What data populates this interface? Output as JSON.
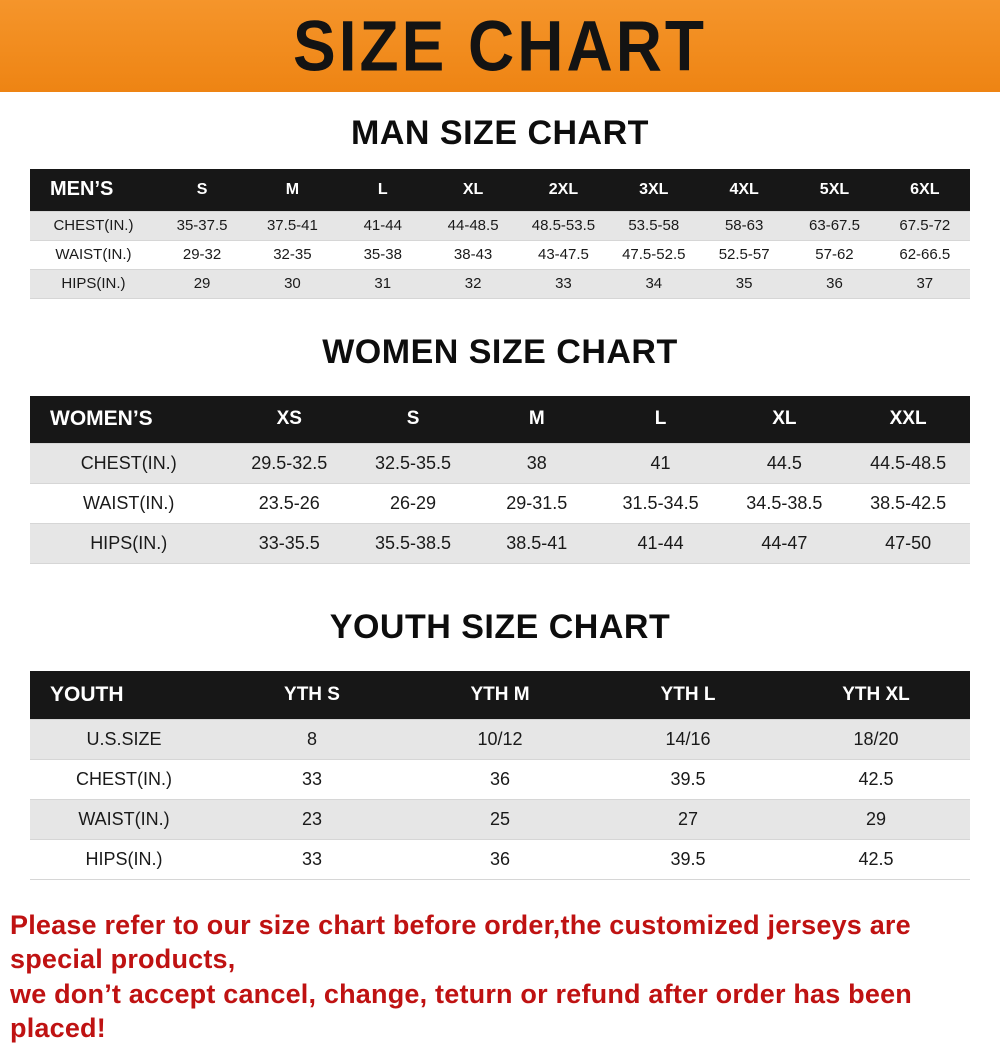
{
  "banner": {
    "title": "SIZE CHART",
    "bg_color": "#f08a1d"
  },
  "colors": {
    "table_header_bg": "#171717",
    "row_shaded": "#e6e6e6",
    "footer_text": "#bf1212"
  },
  "sections": [
    {
      "heading": "MAN SIZE CHART",
      "table": {
        "title": "MEN’S",
        "columns": [
          "S",
          "M",
          "L",
          "XL",
          "2XL",
          "3XL",
          "4XL",
          "5XL",
          "6XL"
        ],
        "rows": [
          {
            "label": "CHEST(IN.)",
            "values": [
              "35-37.5",
              "37.5-41",
              "41-44",
              "44-48.5",
              "48.5-53.5",
              "53.5-58",
              "58-63",
              "63-67.5",
              "67.5-72"
            ]
          },
          {
            "label": "WAIST(IN.)",
            "values": [
              "29-32",
              "32-35",
              "35-38",
              "38-43",
              "43-47.5",
              "47.5-52.5",
              "52.5-57",
              "57-62",
              "62-66.5"
            ]
          },
          {
            "label": "HIPS(IN.)",
            "values": [
              "29",
              "30",
              "31",
              "32",
              "33",
              "34",
              "35",
              "36",
              "37"
            ]
          }
        ]
      }
    },
    {
      "heading": "WOMEN SIZE CHART",
      "table": {
        "title": "WOMEN’S",
        "columns": [
          "XS",
          "S",
          "M",
          "L",
          "XL",
          "XXL"
        ],
        "rows": [
          {
            "label": "CHEST(IN.)",
            "values": [
              "29.5-32.5",
              "32.5-35.5",
              "38",
              "41",
              "44.5",
              "44.5-48.5"
            ]
          },
          {
            "label": "WAIST(IN.)",
            "values": [
              "23.5-26",
              "26-29",
              "29-31.5",
              "31.5-34.5",
              "34.5-38.5",
              "38.5-42.5"
            ]
          },
          {
            "label": "HIPS(IN.)",
            "values": [
              "33-35.5",
              "35.5-38.5",
              "38.5-41",
              "41-44",
              "44-47",
              "47-50"
            ]
          }
        ]
      }
    },
    {
      "heading": "YOUTH SIZE CHART",
      "table": {
        "title": "YOUTH",
        "columns": [
          "YTH S",
          "YTH M",
          "YTH L",
          "YTH XL"
        ],
        "rows": [
          {
            "label": "U.S.SIZE",
            "values": [
              "8",
              "10/12",
              "14/16",
              "18/20"
            ]
          },
          {
            "label": "CHEST(IN.)",
            "values": [
              "33",
              "36",
              "39.5",
              "42.5"
            ]
          },
          {
            "label": "WAIST(IN.)",
            "values": [
              "23",
              "25",
              "27",
              "29"
            ]
          },
          {
            "label": "HIPS(IN.)",
            "values": [
              "33",
              "36",
              "39.5",
              "42.5"
            ]
          }
        ]
      }
    }
  ],
  "footer": {
    "line1": "Please refer to our size chart before order,the customized jerseys are special products,",
    "line2": "we don’t accept cancel, change, teturn or refund after order has been placed!"
  }
}
